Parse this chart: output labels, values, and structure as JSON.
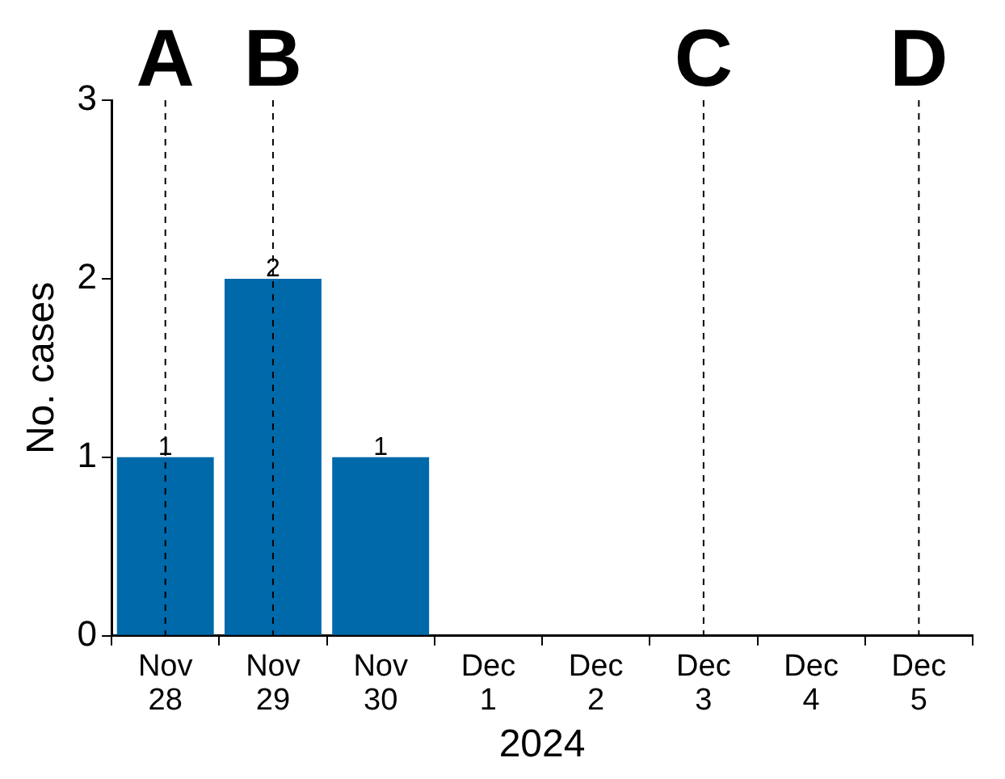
{
  "chart_data": {
    "type": "bar",
    "xlabel": "2024",
    "ylabel": "No. cases",
    "categories": [
      "Nov 28",
      "Nov 29",
      "Nov 30",
      "Dec 1",
      "Dec 2",
      "Dec 3",
      "Dec 4",
      "Dec 5"
    ],
    "values": [
      1,
      2,
      1,
      0,
      0,
      0,
      0,
      0
    ],
    "color": "#0069aa",
    "value_labels": [
      "1",
      "2",
      "1",
      null,
      null,
      null,
      null,
      null
    ],
    "ylim": [
      0,
      3
    ],
    "yticks": [
      0,
      1,
      2,
      3
    ],
    "grid": false,
    "legend": false,
    "ref_lines": [
      {
        "axis": "x",
        "value": "Nov 28",
        "label": "A",
        "line_style": "dashed",
        "color": "#000000"
      },
      {
        "axis": "x",
        "value": "Nov 29",
        "label": "B",
        "line_style": "dashed",
        "color": "#000000"
      },
      {
        "axis": "x",
        "value": "Dec 3",
        "label": "C",
        "line_style": "dashed",
        "color": "#000000"
      },
      {
        "axis": "x",
        "value": "Dec 5",
        "label": "D",
        "line_style": "dashed",
        "color": "#000000"
      }
    ]
  }
}
